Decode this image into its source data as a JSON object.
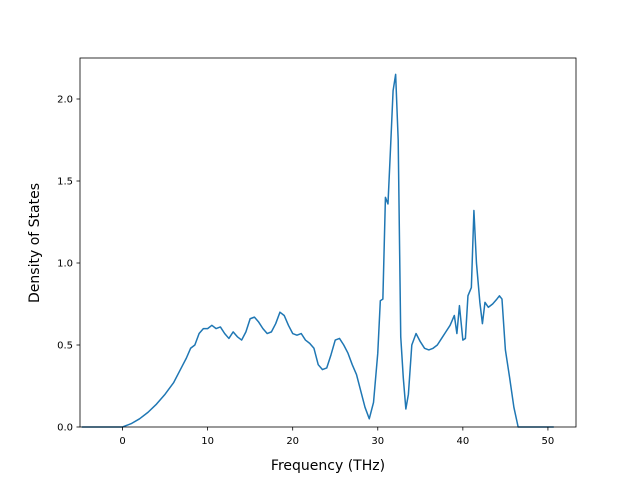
{
  "chart_data": {
    "type": "line",
    "title": "",
    "xlabel": "Frequency (THz)",
    "ylabel": "Density of States",
    "xlim": [
      -5.0,
      53.3
    ],
    "ylim": [
      0.0,
      2.25
    ],
    "xticks": [
      0,
      10,
      20,
      30,
      40,
      50
    ],
    "yticks": [
      0.0,
      0.5,
      1.0,
      1.5,
      2.0
    ],
    "xtick_labels": [
      "0",
      "10",
      "20",
      "30",
      "40",
      "50"
    ],
    "ytick_labels": [
      "0.0",
      "0.5",
      "1.0",
      "1.5",
      "2.0"
    ],
    "grid": false,
    "line_color": "#1f77b4",
    "series": [
      {
        "x": [
          -4.7,
          -3,
          -1,
          0,
          0.5,
          1,
          2,
          3,
          4,
          5,
          6,
          7,
          7.5,
          8,
          8.5,
          9,
          9.5,
          10,
          10.5,
          11,
          11.5,
          12,
          12.5,
          13,
          13.5,
          14,
          14.5,
          15,
          15.5,
          16,
          16.5,
          17,
          17.5,
          18,
          18.5,
          19,
          19.5,
          20,
          20.5,
          21,
          21.5,
          22,
          22.5,
          23,
          23.5,
          24,
          24.5,
          25,
          25.5,
          26,
          26.5,
          27,
          27.5,
          28,
          28.5,
          29,
          29.5,
          30,
          30.3,
          30.6,
          30.9,
          31.2,
          31.5,
          31.8,
          32.1,
          32.4,
          32.7,
          33,
          33.3,
          33.6,
          34,
          34.5,
          35,
          35.5,
          36,
          36.5,
          37,
          37.5,
          38,
          38.5,
          39,
          39.3,
          39.6,
          40,
          40.3,
          40.6,
          41,
          41.3,
          41.6,
          42,
          42.3,
          42.6,
          43,
          43.5,
          44,
          44.3,
          44.6,
          45,
          45.5,
          46,
          46.5,
          47,
          50,
          50.6
        ],
        "y": [
          0.0,
          0.0,
          0.0,
          0.0,
          0.01,
          0.02,
          0.05,
          0.09,
          0.14,
          0.2,
          0.27,
          0.37,
          0.42,
          0.48,
          0.5,
          0.57,
          0.6,
          0.6,
          0.62,
          0.6,
          0.61,
          0.57,
          0.54,
          0.58,
          0.55,
          0.53,
          0.58,
          0.66,
          0.67,
          0.64,
          0.6,
          0.57,
          0.58,
          0.63,
          0.7,
          0.68,
          0.62,
          0.57,
          0.56,
          0.57,
          0.53,
          0.51,
          0.48,
          0.38,
          0.35,
          0.36,
          0.44,
          0.53,
          0.54,
          0.5,
          0.45,
          0.38,
          0.32,
          0.22,
          0.12,
          0.05,
          0.15,
          0.45,
          0.77,
          0.78,
          1.4,
          1.36,
          1.7,
          2.05,
          2.15,
          1.75,
          0.55,
          0.3,
          0.11,
          0.2,
          0.5,
          0.57,
          0.52,
          0.48,
          0.47,
          0.48,
          0.5,
          0.54,
          0.58,
          0.62,
          0.68,
          0.57,
          0.74,
          0.53,
          0.54,
          0.8,
          0.85,
          1.32,
          1.0,
          0.76,
          0.63,
          0.76,
          0.73,
          0.75,
          0.78,
          0.8,
          0.78,
          0.47,
          0.3,
          0.12,
          0.0,
          0.0,
          0.0,
          0.0
        ]
      }
    ]
  }
}
